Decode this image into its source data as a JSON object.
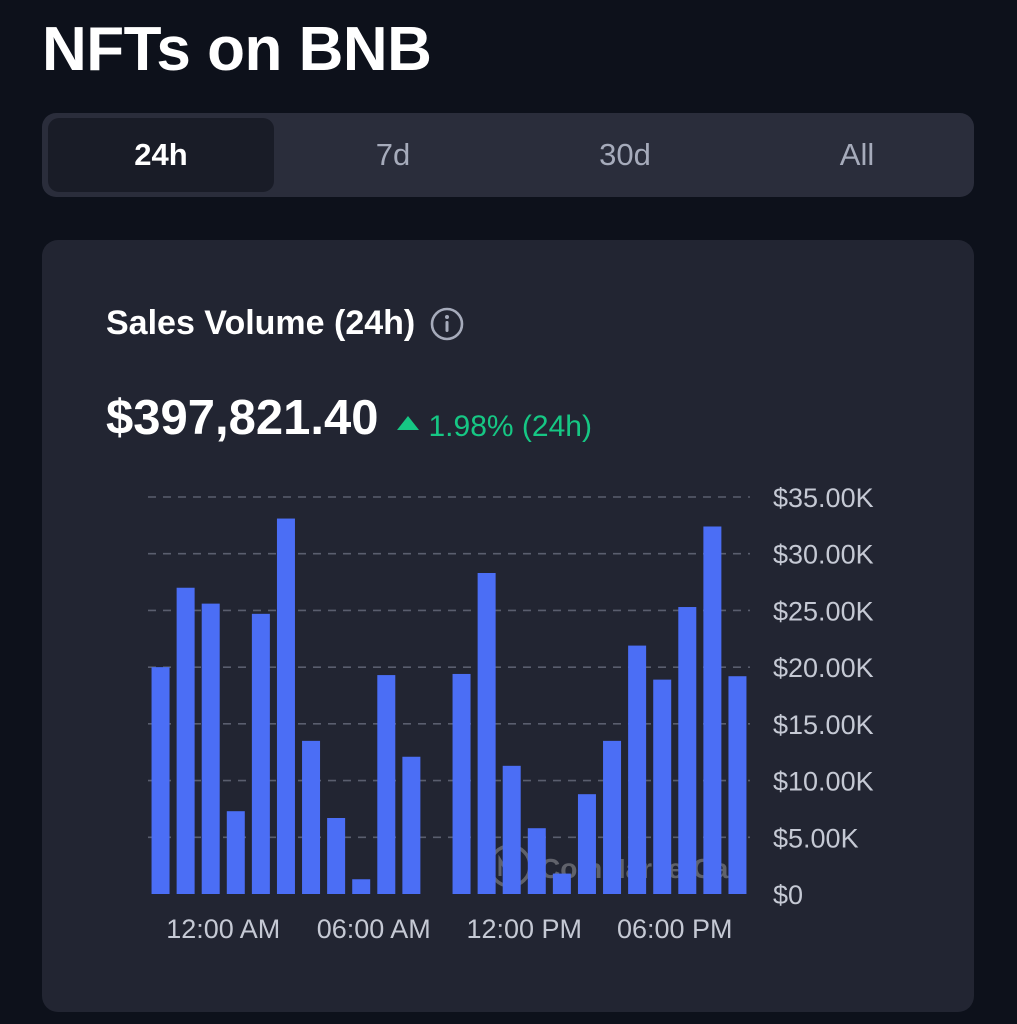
{
  "page": {
    "title": "NFTs on BNB"
  },
  "tabs": [
    {
      "label": "24h",
      "active": true
    },
    {
      "label": "7d",
      "active": false
    },
    {
      "label": "30d",
      "active": false
    },
    {
      "label": "All",
      "active": false
    }
  ],
  "card": {
    "title": "Sales Volume (24h)",
    "info_icon": "info-circle-icon",
    "total": "$397,821.40",
    "change": "1.98% (24h)",
    "change_direction": "up",
    "watermark": "CoinMarketCap"
  },
  "colors": {
    "bar": "#4b6ef5",
    "positive": "#16c784",
    "background": "#0d111b",
    "card": "#222532"
  },
  "chart_data": {
    "type": "bar",
    "values": [
      20000,
      27000,
      25600,
      7300,
      24700,
      33100,
      13500,
      6700,
      1300,
      19300,
      12100,
      0,
      19400,
      28300,
      11300,
      5800,
      1800,
      8800,
      13500,
      21900,
      18900,
      25300,
      32400,
      19200
    ],
    "x_tick_labels": [
      "12:00 AM",
      "06:00 AM",
      "12:00 PM",
      "06:00 PM"
    ],
    "y_tick_labels": [
      "$0",
      "$5.00K",
      "$10.00K",
      "$15.00K",
      "$20.00K",
      "$25.00K",
      "$30.00K",
      "$35.00K"
    ],
    "ylim": [
      0,
      35000
    ],
    "grid": true
  }
}
